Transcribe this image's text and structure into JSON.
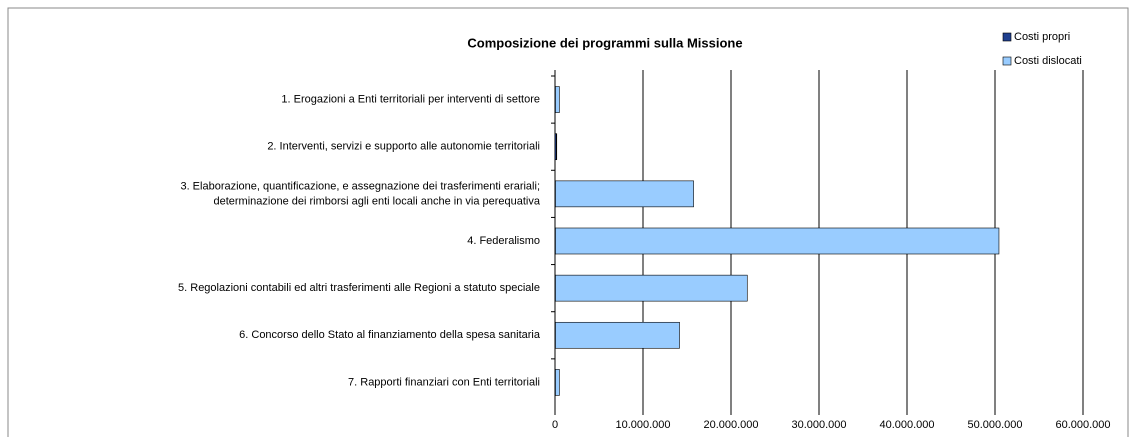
{
  "chart_data": {
    "type": "bar",
    "orientation": "horizontal",
    "stacked": true,
    "title": "Composizione dei programmi sulla Missione",
    "categories": [
      "1. Erogazioni a Enti territoriali per interventi di settore",
      "2. Interventi, servizi e supporto alle autonomie territoriali",
      "3. Elaborazione, quantificazione, e assegnazione dei trasferimenti erariali;\ndeterminazione dei rimborsi agli enti locali anche in via perequativa",
      "4. Federalismo",
      "5. Regolazioni contabili ed altri trasferimenti alle Regioni a statuto speciale",
      "6. Concorso dello Stato al finanziamento della spesa sanitaria",
      "7. Rapporti finanziari con Enti territoriali"
    ],
    "series": [
      {
        "name": "Costi propri",
        "color": "#1f3f8f",
        "values": [
          50000,
          150000,
          50000,
          50000,
          50000,
          50000,
          50000
        ]
      },
      {
        "name": "Costi dislocati",
        "color": "#99ccff",
        "values": [
          450000,
          50000,
          15700000,
          50400000,
          21800000,
          14100000,
          450000
        ]
      }
    ],
    "xlim": [
      0,
      60000000
    ],
    "xticks": [
      0,
      {
        "value": 10000000,
        "label": "10.000.000"
      },
      {
        "value": 20000000,
        "label": "20.000.000"
      },
      {
        "value": 30000000,
        "label": "30.000.000"
      },
      {
        "value": 40000000,
        "label": "40.000.000"
      },
      {
        "value": 50000000,
        "label": "50.000.000"
      },
      {
        "value": 60000000,
        "label": "60.000.000"
      }
    ],
    "grid": true,
    "legend": "top-right"
  }
}
